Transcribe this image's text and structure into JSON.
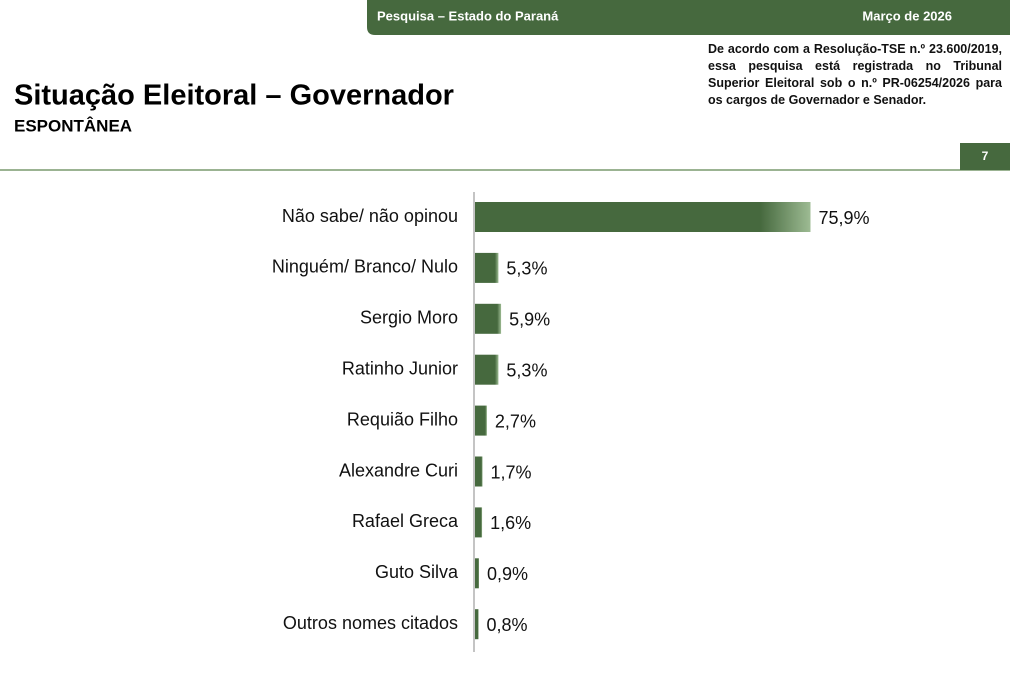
{
  "header": {
    "survey": "Pesquisa – Estado do Paraná",
    "date": "Março de 2026",
    "note": "De acordo com a Resolução-TSE n.º 23.600/2019, essa pesquisa está registrada no Tribunal Superior Eleitoral sob o n.º PR-06254/2026 para os cargos de Governador e Senador.",
    "page": "7"
  },
  "chart_data": {
    "type": "bar",
    "orientation": "horizontal",
    "title": "Situação Eleitoral – Governador",
    "subtitle": "ESPONTÂNEA",
    "categories": [
      "Não sabe/ não opinou",
      "Ninguém/ Branco/ Nulo",
      "Sergio Moro",
      "Ratinho Junior",
      "Requião Filho",
      "Alexandre Curi",
      "Rafael Greca",
      "Guto Silva",
      "Outros nomes citados"
    ],
    "values": [
      75.9,
      5.3,
      5.9,
      5.3,
      2.7,
      1.7,
      1.6,
      0.9,
      0.8
    ],
    "value_labels": [
      "75,9%",
      "5,3%",
      "5,9%",
      "5,3%",
      "2,7%",
      "1,7%",
      "1,6%",
      "0,9%",
      "0,8%"
    ],
    "color": "#46693e"
  }
}
